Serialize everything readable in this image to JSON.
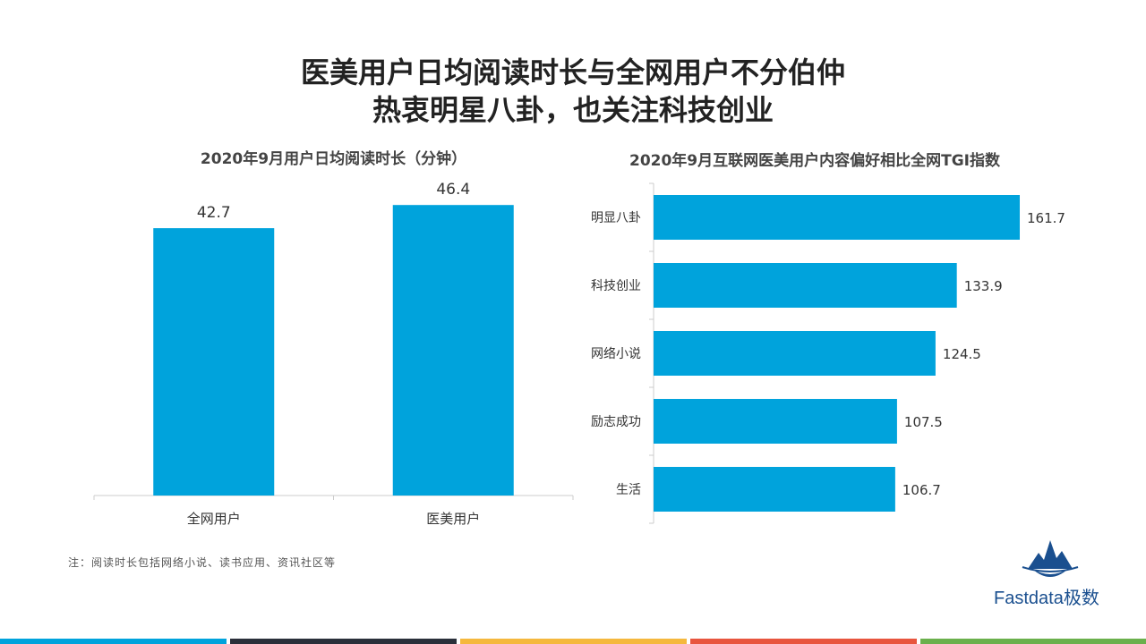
{
  "page": {
    "title_line1": "医美用户日均阅读时长与全网用户不分伯仲",
    "title_line2": "热衷明星八卦，也关注科技创业",
    "note": "注：阅读时长包括网络小说、读书应用、资讯社区等",
    "logo_text": "Fastdata极数"
  },
  "colors": {
    "bar": "#00a3dc",
    "stripes": [
      "#00a3dc",
      "#2a2f3a",
      "#f5b83d",
      "#e8553e",
      "#6ab04c"
    ]
  },
  "chart_data": [
    {
      "type": "bar",
      "title": "2020年9月用户日均阅读时长（分钟）",
      "categories": [
        "全网用户",
        "医美用户"
      ],
      "values": [
        42.7,
        46.4
      ],
      "value_labels": [
        "42.7",
        "46.4"
      ],
      "ylim": [
        0,
        50
      ],
      "grid": false
    },
    {
      "type": "bar",
      "orientation": "horizontal",
      "title": "2020年9月互联网医美用户内容偏好相比全网TGI指数",
      "categories": [
        "明显八卦",
        "科技创业",
        "网络小说",
        "励志成功",
        "生活"
      ],
      "values": [
        161.7,
        133.9,
        124.5,
        107.5,
        106.7
      ],
      "value_labels": [
        "161.7",
        "133.9",
        "124.5",
        "107.5",
        "106.7"
      ],
      "xlim": [
        0,
        170
      ],
      "grid": false
    }
  ]
}
